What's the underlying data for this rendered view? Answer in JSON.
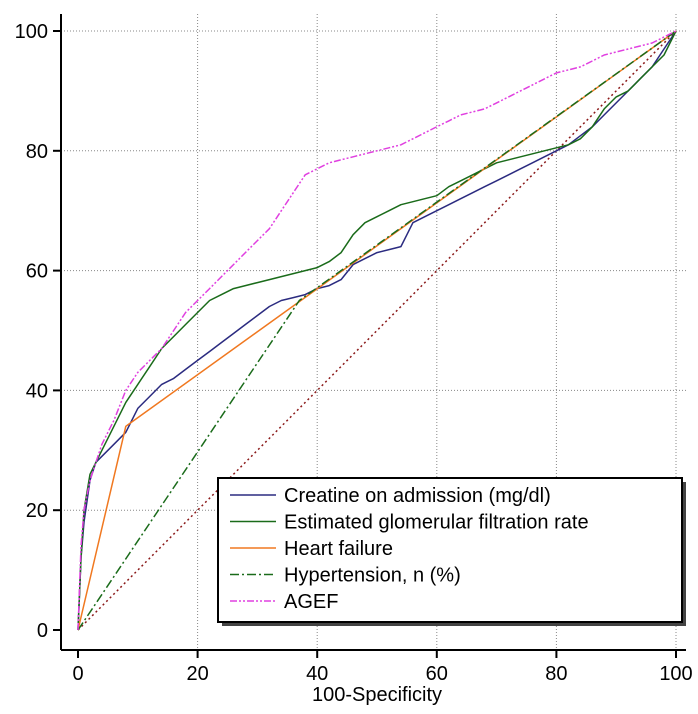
{
  "chart_data": {
    "type": "line",
    "title": "",
    "xlabel": "100-Specificity",
    "ylabel": "",
    "xlim": [
      0,
      100
    ],
    "ylim": [
      0,
      100
    ],
    "x_ticks": [
      0,
      20,
      40,
      60,
      80,
      100
    ],
    "y_ticks": [
      0,
      20,
      40,
      60,
      80,
      100
    ],
    "x_tick_labels": [
      "0",
      "20",
      "40",
      "60",
      "80",
      "100"
    ],
    "y_tick_labels": [
      "0",
      "20",
      "40",
      "60",
      "80",
      "100"
    ],
    "grid": true,
    "legend_position": "bottom-right",
    "reference_line": {
      "x": [
        0,
        100
      ],
      "y": [
        0,
        100
      ],
      "color": "#8b1a1a"
    },
    "series": [
      {
        "name": "Creatine on admission (mg/dl)",
        "color": "#2b2b80",
        "style": "solid",
        "x": [
          0,
          0.5,
          1,
          2,
          3,
          4,
          5,
          6,
          8,
          10,
          12,
          14,
          16,
          18,
          20,
          22,
          24,
          26,
          28,
          30,
          32,
          34,
          36,
          38,
          40,
          42,
          44,
          46,
          48,
          50,
          52,
          54,
          55,
          56,
          58,
          60,
          62,
          64,
          66,
          68,
          70,
          72,
          74,
          76,
          78,
          80,
          82,
          84,
          86,
          88,
          90,
          92,
          94,
          96,
          98,
          100
        ],
        "y": [
          0,
          12,
          18,
          25,
          28,
          29,
          30,
          31,
          33,
          37,
          39,
          41,
          42,
          43.5,
          45,
          46.5,
          48,
          49.5,
          51,
          52.5,
          54,
          55,
          55.5,
          56,
          57,
          57.5,
          58.5,
          61,
          62,
          63,
          63.5,
          64,
          66,
          68,
          69,
          70,
          71,
          72,
          73,
          74,
          75,
          76,
          77,
          78,
          79,
          80,
          81,
          82.5,
          84,
          86,
          88,
          90,
          92,
          94,
          97,
          100
        ]
      },
      {
        "name": "Estimated glomerular filtration rate",
        "color": "#1a6b1a",
        "style": "solid",
        "x": [
          0,
          0.5,
          1,
          2,
          3,
          4,
          5,
          6,
          8,
          10,
          12,
          14,
          16,
          18,
          20,
          22,
          24,
          26,
          28,
          30,
          32,
          34,
          36,
          38,
          40,
          42,
          44,
          46,
          48,
          50,
          52,
          54,
          56,
          58,
          60,
          62,
          64,
          66,
          68,
          70,
          72,
          74,
          76,
          78,
          80,
          82,
          84,
          86,
          88,
          90,
          92,
          94,
          96,
          98,
          100
        ],
        "y": [
          0,
          12,
          20,
          26,
          28,
          30,
          32,
          34,
          38,
          41,
          44,
          47,
          49,
          51,
          53,
          55,
          56,
          57,
          57.5,
          58,
          58.5,
          59,
          59.5,
          60,
          60.5,
          61.5,
          63,
          66,
          68,
          69,
          70,
          71,
          71.5,
          72,
          72.5,
          74,
          75,
          76,
          77,
          78,
          78.5,
          79,
          79.5,
          80,
          80.5,
          81,
          82,
          84,
          87,
          89,
          90,
          92,
          94,
          96,
          100
        ]
      },
      {
        "name": "Heart failure",
        "color": "#f07820",
        "style": "solid",
        "x": [
          0,
          8,
          100
        ],
        "y": [
          0,
          34,
          100
        ]
      },
      {
        "name": "Hypertension, n (%)",
        "color": "#1a6b1a",
        "style": "dashdot",
        "x": [
          0,
          37,
          100
        ],
        "y": [
          0,
          55,
          100
        ]
      },
      {
        "name": "AGEF",
        "color": "#e040e0",
        "style": "dashdotdot",
        "x": [
          0,
          0.5,
          1,
          2,
          3,
          4,
          5,
          6,
          8,
          10,
          12,
          14,
          16,
          18,
          20,
          22,
          24,
          26,
          28,
          30,
          32,
          34,
          36,
          38,
          40,
          42,
          44,
          46,
          48,
          50,
          52,
          54,
          56,
          58,
          60,
          62,
          64,
          66,
          68,
          70,
          72,
          74,
          76,
          78,
          80,
          82,
          84,
          86,
          88,
          90,
          92,
          94,
          96,
          98,
          100
        ],
        "y": [
          0,
          14,
          20,
          25,
          28,
          31,
          33,
          35,
          40,
          43,
          45,
          47,
          50,
          53,
          55,
          57,
          59,
          61,
          63,
          65,
          67,
          70,
          73,
          76,
          77,
          78,
          78.5,
          79,
          79.5,
          80,
          80.5,
          81,
          82,
          83,
          84,
          85,
          86,
          86.5,
          87,
          88,
          89,
          90,
          91,
          92,
          93,
          93.5,
          94,
          95,
          96,
          96.5,
          97,
          97.5,
          98,
          99,
          100
        ]
      }
    ]
  }
}
